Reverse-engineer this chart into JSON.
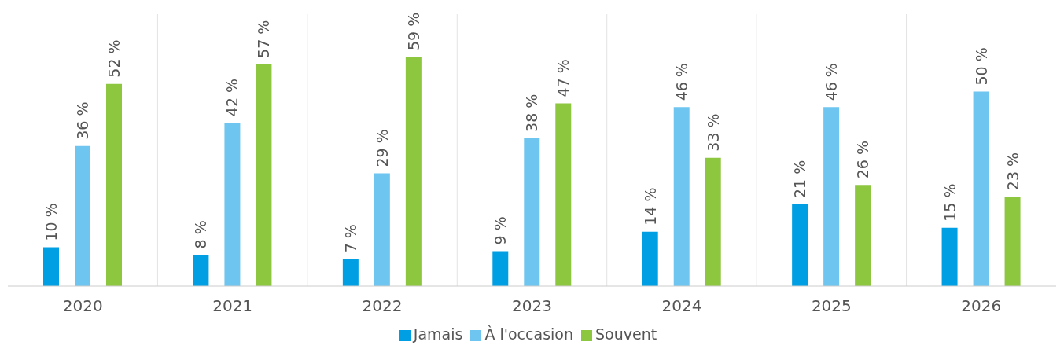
{
  "chart_data": {
    "type": "bar",
    "categories": [
      "2020",
      "2021",
      "2022",
      "2023",
      "2024",
      "2025",
      "2026"
    ],
    "series": [
      {
        "name": "Jamais",
        "color": "#009fe3",
        "values": [
          10,
          8,
          7,
          9,
          14,
          21,
          15
        ],
        "value_labels": [
          "10 %",
          "8 %",
          "7 %",
          "9 %",
          "14 %",
          "21 %",
          "15 %"
        ]
      },
      {
        "name": "À l'occasion",
        "color": "#6ec6f0",
        "values": [
          36,
          42,
          29,
          38,
          46,
          46,
          50
        ],
        "value_labels": [
          "36 %",
          "42 %",
          "29 %",
          "38 %",
          "46 %",
          "46 %",
          "50 %"
        ]
      },
      {
        "name": "Souvent",
        "color": "#8dc63f",
        "values": [
          52,
          57,
          59,
          47,
          33,
          26,
          23
        ],
        "value_labels": [
          "52 %",
          "57 %",
          "59 %",
          "47 %",
          "33 %",
          "26 %",
          "23 %"
        ]
      }
    ],
    "grid": "x",
    "legend": "bottom"
  }
}
